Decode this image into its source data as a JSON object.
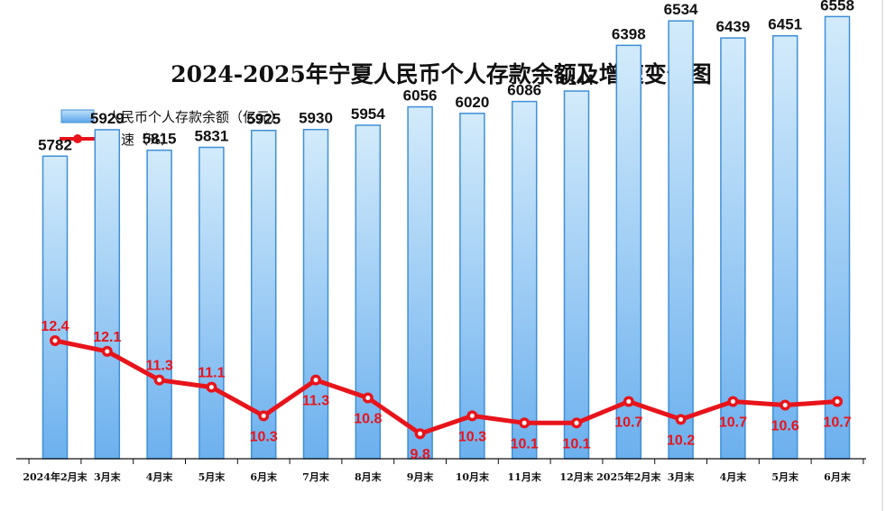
{
  "chart_data": {
    "type": "bar",
    "title": "2024-2025年宁夏人民币个人存款余额及增速变化图",
    "categories": [
      "2024年2月末",
      "3月末",
      "4月末",
      "5月末",
      "6月末",
      "7月末",
      "8月末",
      "9月末",
      "10月末",
      "11月末",
      "12月末",
      "2025年2月末",
      "3月末",
      "4月末",
      "5月末",
      "6月末"
    ],
    "series": [
      {
        "name": "人民币个人存款余额（亿元）",
        "type": "bar",
        "values": [
          5782,
          5929,
          5815,
          5831,
          5925,
          5930,
          5954,
          6056,
          6020,
          6086,
          6144,
          6398,
          6534,
          6439,
          6451,
          6558
        ]
      },
      {
        "name": "增速（%）",
        "type": "line",
        "values": [
          12.4,
          12.1,
          11.3,
          11.1,
          10.3,
          11.3,
          10.8,
          9.8,
          10.3,
          10.1,
          10.1,
          10.7,
          10.2,
          10.7,
          10.6,
          10.7
        ]
      }
    ],
    "legend_placement": "top-left",
    "grid": false,
    "colors": {
      "bar_top": "#cfe8fa",
      "bar_bottom": "#6fb2ee",
      "bar_border": "#3f8fd8",
      "line": "#e8141b",
      "marker_fill": "#ffffff"
    }
  }
}
